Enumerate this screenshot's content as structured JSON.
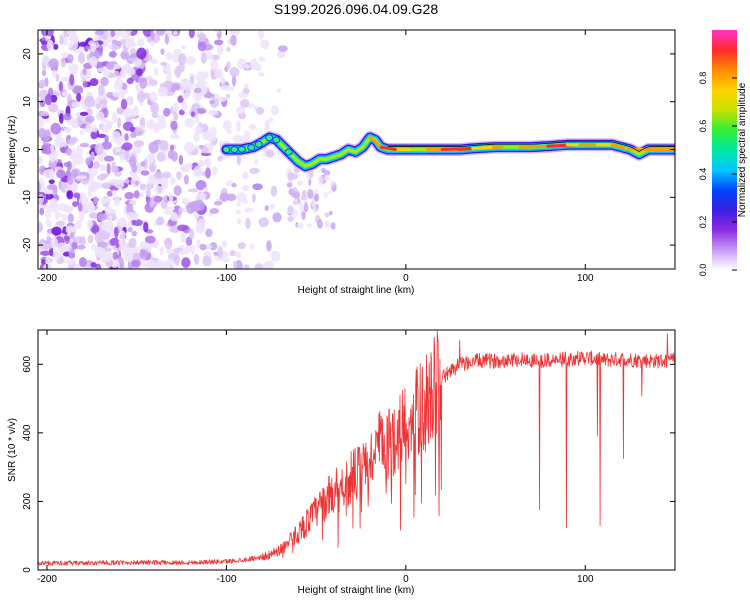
{
  "figure_title": "S199.2026.096.04.09.G28",
  "chart_data": [
    {
      "type": "heatmap",
      "name": "spectrogram",
      "xlabel": "Height of straight line (km)",
      "ylabel": "Frequency (Hz)",
      "xlim": [
        -205,
        150
      ],
      "ylim": [
        -25,
        25
      ],
      "xticks": [
        -200,
        -100,
        0,
        100
      ],
      "yticks": [
        -20,
        -10,
        0,
        10,
        20
      ],
      "grid": false,
      "noise_region_x": [
        -205,
        -75
      ],
      "signal_start_x": -100,
      "signal_trace": {
        "x": [
          -100,
          -92,
          -85,
          -80,
          -76,
          -72,
          -68,
          -64,
          -60,
          -56,
          -52,
          -48,
          -44,
          -40,
          -36,
          -32,
          -28,
          -24,
          -20,
          -17,
          -14,
          -10,
          -5,
          0,
          10,
          20,
          30,
          40,
          50,
          60,
          70,
          80,
          90,
          100,
          110,
          115,
          120,
          125,
          130,
          135,
          140,
          150
        ],
        "y": [
          0,
          0,
          0.5,
          1.5,
          2.5,
          2,
          0.5,
          -1,
          -2.5,
          -3.5,
          -3,
          -2,
          -2,
          -1.5,
          -1,
          0,
          -0.5,
          0.5,
          2.5,
          2,
          0.5,
          0,
          0,
          0,
          0,
          0,
          0,
          0.3,
          0.5,
          0.5,
          0.5,
          0.7,
          1,
          1,
          1,
          1,
          0.5,
          0,
          -1,
          0,
          0,
          0
        ]
      },
      "colorbar": {
        "label": "Normalized spectral amplitude",
        "range": [
          0,
          1
        ],
        "ticks": [
          "0.0",
          "0.2",
          "0.4",
          "0.6",
          "0.8"
        ],
        "colors": [
          "#ffffff",
          "#c79cf5",
          "#8a2be2",
          "#3b1fe0",
          "#0046ff",
          "#00c8ff",
          "#00e8a0",
          "#33ee33",
          "#c8e000",
          "#ffd200",
          "#ff8a00",
          "#ff2a2a",
          "#ff33cc"
        ]
      }
    },
    {
      "type": "line",
      "name": "snr",
      "xlabel": "Height of straight line (km)",
      "ylabel": "SNR (10 * v/v)",
      "xlim": [
        -205,
        150
      ],
      "ylim": [
        0,
        700
      ],
      "xticks": [
        -200,
        -100,
        0,
        100
      ],
      "yticks": [
        0,
        200,
        400,
        600
      ],
      "grid": false,
      "line_color": "#ee3333",
      "series": [
        {
          "name": "SNR",
          "x": [
            -205,
            -180,
            -150,
            -120,
            -100,
            -90,
            -80,
            -75,
            -70,
            -65,
            -60,
            -55,
            -50,
            -45,
            -40,
            -35,
            -30,
            -25,
            -20,
            -15,
            -10,
            -5,
            0,
            5,
            10,
            15,
            20,
            25,
            30,
            40,
            50,
            60,
            70,
            80,
            90,
            100,
            110,
            120,
            130,
            140,
            150
          ],
          "y": [
            20,
            20,
            22,
            22,
            25,
            30,
            38,
            45,
            60,
            80,
            110,
            140,
            170,
            200,
            230,
            250,
            270,
            290,
            320,
            360,
            360,
            400,
            430,
            450,
            480,
            520,
            560,
            580,
            600,
            610,
            610,
            615,
            612,
            610,
            615,
            620,
            612,
            615,
            612,
            610,
            612
          ]
        }
      ]
    }
  ]
}
